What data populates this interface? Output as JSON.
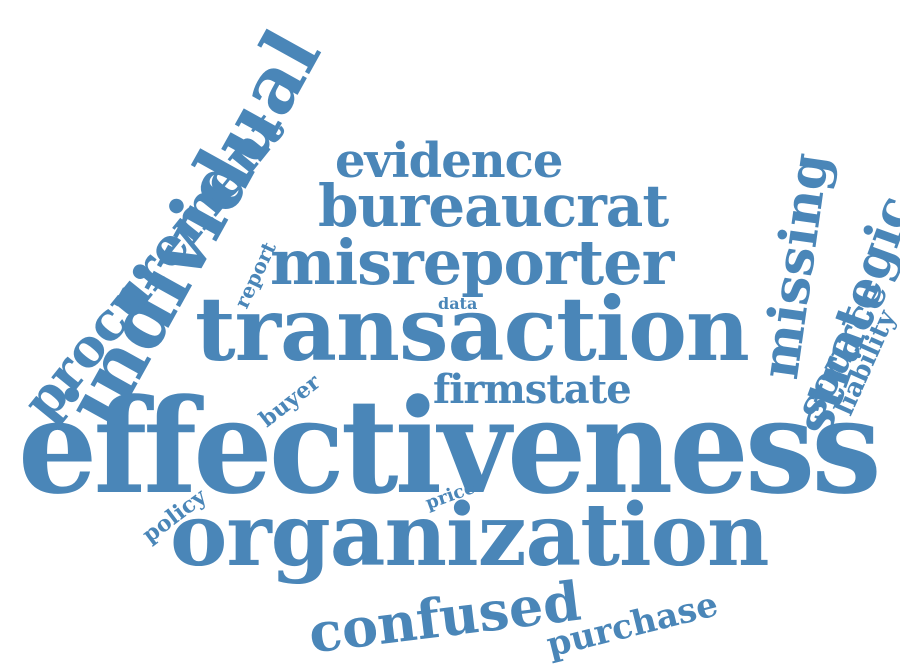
{
  "colors": {
    "background": "#ffffff",
    "word": "#4a86b8"
  },
  "words": {
    "effectiveness": "effectiveness",
    "organization": "organization",
    "transaction": "transaction",
    "misreporter": "misreporter",
    "bureaucrat": "bureaucrat",
    "evidence": "evidence",
    "individual": "individual",
    "procurement": "procurement",
    "missing": "missing",
    "strategic": "strategic",
    "source": "source",
    "liability": "liability",
    "firmstate": "firmstate",
    "confused": "confused",
    "purchase": "purchase",
    "report": "report",
    "data": "data",
    "buyer": "buyer",
    "policy": "policy",
    "price": "price"
  }
}
